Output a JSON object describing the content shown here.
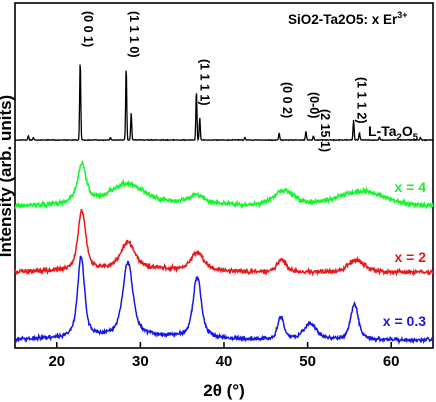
{
  "chart_data": {
    "type": "line",
    "xlabel": "2θ (°)",
    "ylabel": "Intensity (arb. units)",
    "xlim": [
      15,
      65
    ],
    "xticks": [
      20,
      30,
      40,
      50,
      60
    ],
    "annotation": {
      "main": "SiO2-Ta2O5: x Er",
      "superscript": "3+"
    },
    "reference": {
      "name_main": "L-Ta",
      "name_sub": "2",
      "name_tail": "O",
      "name_sub2": "5",
      "color": "#000000"
    },
    "peak_labels": [
      {
        "text": "(0 0 1)",
        "x": 22.8
      },
      {
        "text": "(1 1 1 0)",
        "x": 28.3
      },
      {
        "text": "(1 1 1 1)",
        "x": 36.7
      },
      {
        "text": "(0 0 2)",
        "x": 46.6
      },
      {
        "text": "(0-0)",
        "x": 49.8
      },
      {
        "text": "(2 15 1)",
        "x": 51.1
      },
      {
        "text": "(1 1 1 2)",
        "x": 55.5
      }
    ],
    "reference_peaks": [
      {
        "x": 16.6,
        "h": 0.05
      },
      {
        "x": 17.2,
        "h": 0.03
      },
      {
        "x": 22.8,
        "h": 1.0
      },
      {
        "x": 26.4,
        "h": 0.03
      },
      {
        "x": 28.3,
        "h": 0.92
      },
      {
        "x": 28.9,
        "h": 0.34
      },
      {
        "x": 36.7,
        "h": 0.62
      },
      {
        "x": 37.1,
        "h": 0.28
      },
      {
        "x": 42.5,
        "h": 0.03
      },
      {
        "x": 46.6,
        "h": 0.09
      },
      {
        "x": 49.8,
        "h": 0.11
      },
      {
        "x": 50.7,
        "h": 0.05
      },
      {
        "x": 55.5,
        "h": 0.25
      },
      {
        "x": 56.2,
        "h": 0.09
      },
      {
        "x": 58.6,
        "h": 0.04
      },
      {
        "x": 63.5,
        "h": 0.03
      }
    ],
    "series": [
      {
        "label": "x = 4",
        "color": "#17f52d",
        "peaks": [
          {
            "x": 23.0,
            "h": 0.55,
            "w": 0.7
          },
          {
            "x": 28.4,
            "h": 0.28,
            "w": 2.6
          },
          {
            "x": 36.8,
            "h": 0.12,
            "w": 1.4
          },
          {
            "x": 47.2,
            "h": 0.22,
            "w": 1.6
          },
          {
            "x": 56.5,
            "h": 0.22,
            "w": 3.8
          }
        ]
      },
      {
        "label": "x = 2",
        "color": "#e8191b",
        "peaks": [
          {
            "x": 23.0,
            "h": 0.85,
            "w": 0.6
          },
          {
            "x": 28.5,
            "h": 0.38,
            "w": 1.1
          },
          {
            "x": 36.8,
            "h": 0.26,
            "w": 1.0
          },
          {
            "x": 46.9,
            "h": 0.18,
            "w": 0.7
          },
          {
            "x": 55.8,
            "h": 0.18,
            "w": 1.3
          }
        ]
      },
      {
        "label": "x = 0.3",
        "color": "#1717e6",
        "peaks": [
          {
            "x": 22.9,
            "h": 1.0,
            "w": 0.55
          },
          {
            "x": 28.5,
            "h": 0.92,
            "w": 0.8
          },
          {
            "x": 36.8,
            "h": 0.76,
            "w": 0.65
          },
          {
            "x": 46.8,
            "h": 0.28,
            "w": 0.5
          },
          {
            "x": 50.3,
            "h": 0.2,
            "w": 1.0
          },
          {
            "x": 55.6,
            "h": 0.45,
            "w": 0.6
          }
        ]
      }
    ]
  }
}
